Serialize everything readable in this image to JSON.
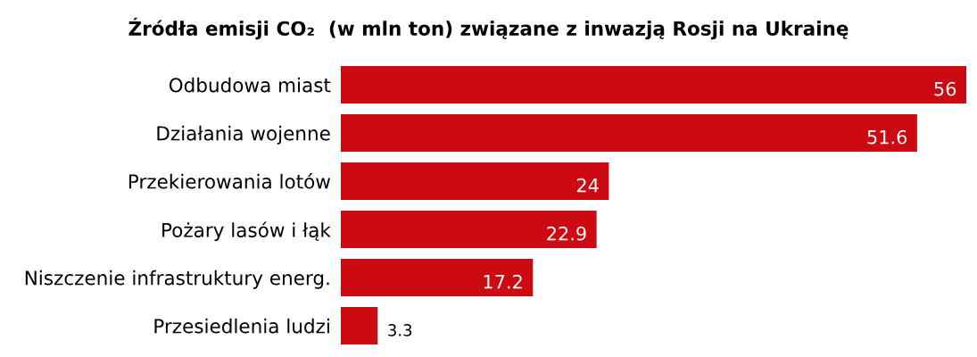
{
  "chart_data": {
    "type": "bar",
    "orientation": "horizontal",
    "title": "Źródła emisji CO₂  (w mln ton) związane z inwazją Rosji na Ukrainę",
    "categories": [
      "Odbudowa miast",
      "Działania wojenne",
      "Przekierowania lotów",
      "Pożary lasów i łąk",
      "Niszczenie infrastruktury energ.",
      "Przesiedlenia ludzi"
    ],
    "values": [
      56,
      51.6,
      24,
      22.9,
      17.2,
      3.3
    ],
    "color": "#cc0a12",
    "data_labels": true,
    "grid": false,
    "legend": false
  }
}
